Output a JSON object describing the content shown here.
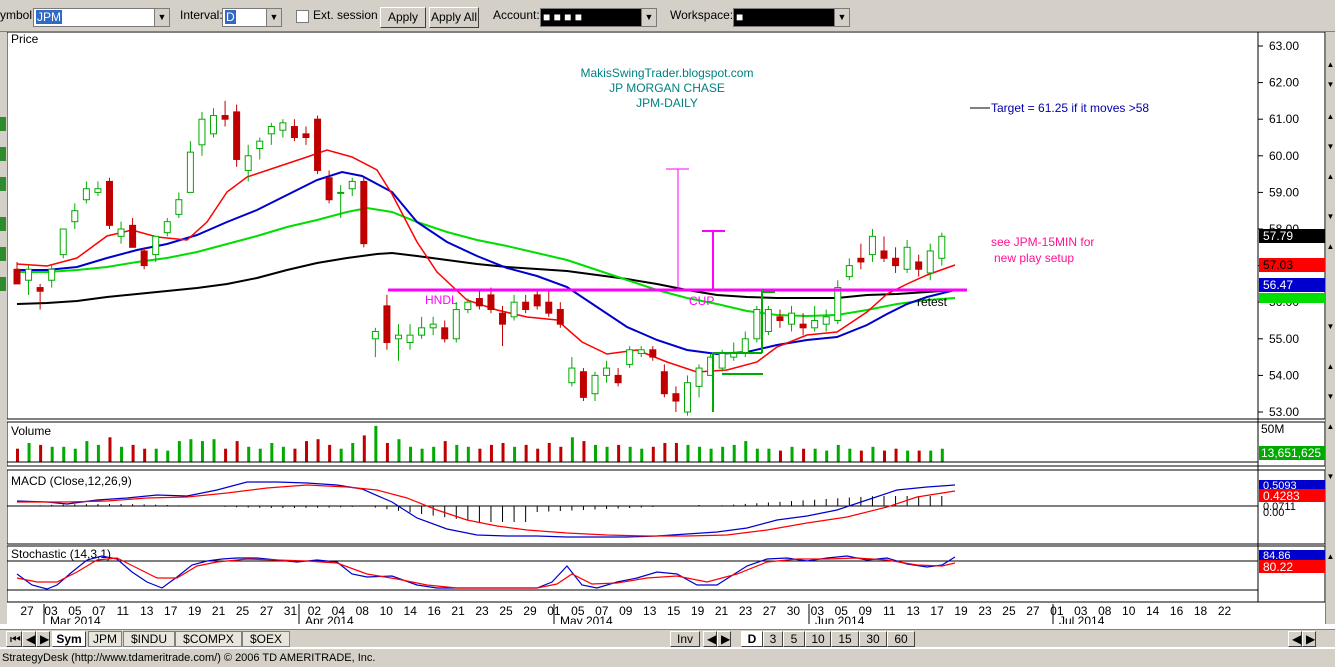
{
  "toolbar": {
    "symbol_label": "ymbol:",
    "symbol_value": "JPM",
    "interval_label": "Interval:",
    "interval_value": "D",
    "ext_session_label": "Ext. session",
    "apply_label": "Apply",
    "apply_all_label": "Apply All",
    "account_label": "Account:",
    "account_value": "■ ■ ■ ■",
    "workspace_label": "Workspace:",
    "workspace_value": "■"
  },
  "annotations": {
    "site": "MakisSwingTrader.blogspot.com",
    "company": "JP MORGAN CHASE",
    "ticker_period": "JPM-DAILY",
    "target": "Target = 61.25 if it moves >58",
    "note_line1": "see JPM-15MIN for",
    "note_line2": "new play setup",
    "hndl": "HNDL",
    "cup": "CUP",
    "retest": "retest"
  },
  "colors": {
    "up": "#00aa00",
    "down": "#c00000",
    "ema_fast": "#ff0000",
    "ema_mid": "#0000cc",
    "ema_slow": "#00dd00",
    "sma_long": "#000000",
    "pattern": "#ff00ff",
    "cup_box": "#00aa00"
  },
  "panels": {
    "price": "Price",
    "volume": "Volume",
    "macd": "MACD (Close,12,26,9)",
    "stoch": "Stochastic (14,3,1)"
  },
  "price_axis": [
    "63.00",
    "62.00",
    "61.00",
    "60.00",
    "59.00",
    "58.00",
    "57.00",
    "56.00",
    "55.00",
    "54.00",
    "53.00"
  ],
  "price_tags": {
    "last": "57.79",
    "ema_fast": "57.03",
    "ema_mid": "56.47",
    "ema_slow_partial": "56.00"
  },
  "volume_axis": "50M",
  "volume_value": "13,651,625",
  "macd_values": [
    "0.5093",
    "0.4283",
    "0.0711",
    "0.00"
  ],
  "stoch_values": [
    "84.86",
    "80.22"
  ],
  "date_ticks": [
    "27",
    "03",
    "05",
    "07",
    "11",
    "13",
    "17",
    "19",
    "21",
    "25",
    "27",
    "31",
    "02",
    "04",
    "08",
    "10",
    "14",
    "16",
    "21",
    "23",
    "25",
    "29",
    "01",
    "05",
    "07",
    "09",
    "13",
    "15",
    "19",
    "21",
    "23",
    "27",
    "30",
    "03",
    "05",
    "09",
    "11",
    "13",
    "17",
    "19",
    "23",
    "25",
    "27",
    "01",
    "03",
    "08",
    "10",
    "14",
    "16",
    "18",
    "22"
  ],
  "month_labels": [
    "Mar 2014",
    "Apr 2014",
    "May 2014",
    "Jun 2014",
    "Jul 2014"
  ],
  "chart_data": {
    "type": "candlestick",
    "title": "",
    "series_candles": [
      {
        "d": "Feb 27",
        "o": 56.9,
        "h": 57.1,
        "l": 56.5,
        "c": 56.5
      },
      {
        "d": "Feb 28",
        "o": 56.6,
        "h": 57.0,
        "l": 56.2,
        "c": 56.9
      },
      {
        "d": "Mar 03",
        "o": 56.4,
        "h": 56.5,
        "l": 55.8,
        "c": 56.3
      },
      {
        "d": "Mar 04",
        "o": 56.6,
        "h": 57.0,
        "l": 56.4,
        "c": 56.9
      },
      {
        "d": "Mar 05",
        "o": 57.3,
        "h": 57.9,
        "l": 57.2,
        "c": 58.0
      },
      {
        "d": "Mar 06",
        "o": 58.2,
        "h": 58.7,
        "l": 58.0,
        "c": 58.5
      },
      {
        "d": "Mar 07",
        "o": 58.8,
        "h": 59.3,
        "l": 58.7,
        "c": 59.1
      },
      {
        "d": "Mar 10",
        "o": 59.0,
        "h": 59.3,
        "l": 58.9,
        "c": 59.1
      },
      {
        "d": "Mar 11",
        "o": 59.3,
        "h": 59.4,
        "l": 58.0,
        "c": 58.1
      },
      {
        "d": "Mar 12",
        "o": 57.8,
        "h": 58.2,
        "l": 57.6,
        "c": 58.0
      },
      {
        "d": "Mar 13",
        "o": 58.1,
        "h": 58.3,
        "l": 57.5,
        "c": 57.5
      },
      {
        "d": "Mar 14",
        "o": 57.4,
        "h": 57.5,
        "l": 56.9,
        "c": 57.0
      },
      {
        "d": "Mar 17",
        "o": 57.3,
        "h": 57.8,
        "l": 57.1,
        "c": 57.8
      },
      {
        "d": "Mar 18",
        "o": 57.9,
        "h": 58.3,
        "l": 57.8,
        "c": 58.2
      },
      {
        "d": "Mar 19",
        "o": 58.4,
        "h": 59.0,
        "l": 58.3,
        "c": 58.8
      },
      {
        "d": "Mar 20",
        "o": 59.0,
        "h": 60.4,
        "l": 59.0,
        "c": 60.1
      },
      {
        "d": "Mar 21",
        "o": 60.3,
        "h": 61.2,
        "l": 60.0,
        "c": 61.0
      },
      {
        "d": "Mar 24",
        "o": 60.6,
        "h": 61.3,
        "l": 60.5,
        "c": 61.1
      },
      {
        "d": "Mar 25",
        "o": 61.1,
        "h": 61.5,
        "l": 60.8,
        "c": 61.0
      },
      {
        "d": "Mar 26",
        "o": 61.2,
        "h": 61.4,
        "l": 59.7,
        "c": 59.9
      },
      {
        "d": "Mar 27",
        "o": 59.6,
        "h": 60.3,
        "l": 59.3,
        "c": 60.0
      },
      {
        "d": "Mar 28",
        "o": 60.2,
        "h": 60.5,
        "l": 59.9,
        "c": 60.4
      },
      {
        "d": "Mar 31",
        "o": 60.6,
        "h": 60.9,
        "l": 60.3,
        "c": 60.8
      },
      {
        "d": "Apr 01",
        "o": 60.7,
        "h": 61.0,
        "l": 60.5,
        "c": 60.9
      },
      {
        "d": "Apr 02",
        "o": 60.8,
        "h": 61.0,
        "l": 60.4,
        "c": 60.5
      },
      {
        "d": "Apr 03",
        "o": 60.6,
        "h": 60.8,
        "l": 60.3,
        "c": 60.5
      },
      {
        "d": "Apr 04",
        "o": 61.0,
        "h": 61.1,
        "l": 59.5,
        "c": 59.6
      },
      {
        "d": "Apr 07",
        "o": 59.4,
        "h": 59.6,
        "l": 58.7,
        "c": 58.8
      },
      {
        "d": "Apr 08",
        "o": 59.0,
        "h": 59.2,
        "l": 58.3,
        "c": 59.0
      },
      {
        "d": "Apr 09",
        "o": 59.1,
        "h": 59.4,
        "l": 58.9,
        "c": 59.3
      },
      {
        "d": "Apr 10",
        "o": 59.3,
        "h": 59.4,
        "l": 57.5,
        "c": 57.6
      },
      {
        "d": "Apr 11",
        "o": 55.0,
        "h": 55.3,
        "l": 54.5,
        "c": 55.2
      },
      {
        "d": "Apr 14",
        "o": 55.9,
        "h": 56.2,
        "l": 54.7,
        "c": 54.9
      },
      {
        "d": "Apr 15",
        "o": 55.0,
        "h": 55.4,
        "l": 54.4,
        "c": 55.1
      },
      {
        "d": "Apr 16",
        "o": 54.9,
        "h": 55.4,
        "l": 54.7,
        "c": 55.1
      },
      {
        "d": "Apr 17",
        "o": 55.1,
        "h": 55.6,
        "l": 55.0,
        "c": 55.3
      },
      {
        "d": "Apr 21",
        "o": 55.3,
        "h": 55.6,
        "l": 55.1,
        "c": 55.4
      },
      {
        "d": "Apr 22",
        "o": 55.3,
        "h": 55.5,
        "l": 54.9,
        "c": 55.0
      },
      {
        "d": "Apr 23",
        "o": 55.0,
        "h": 56.0,
        "l": 54.9,
        "c": 55.8
      },
      {
        "d": "Apr 24",
        "o": 55.8,
        "h": 56.1,
        "l": 55.7,
        "c": 56.0
      },
      {
        "d": "Apr 25",
        "o": 56.1,
        "h": 56.3,
        "l": 55.8,
        "c": 55.9
      },
      {
        "d": "Apr 28",
        "o": 56.2,
        "h": 56.4,
        "l": 55.7,
        "c": 55.8
      },
      {
        "d": "Apr 29",
        "o": 55.7,
        "h": 55.9,
        "l": 54.8,
        "c": 55.4
      },
      {
        "d": "Apr 30",
        "o": 55.6,
        "h": 56.2,
        "l": 55.5,
        "c": 56.0
      },
      {
        "d": "May 01",
        "o": 56.0,
        "h": 56.2,
        "l": 55.7,
        "c": 55.8
      },
      {
        "d": "May 02",
        "o": 56.2,
        "h": 56.3,
        "l": 55.8,
        "c": 55.9
      },
      {
        "d": "May 05",
        "o": 56.0,
        "h": 56.3,
        "l": 55.6,
        "c": 55.7
      },
      {
        "d": "May 06",
        "o": 55.8,
        "h": 56.0,
        "l": 55.3,
        "c": 55.4
      },
      {
        "d": "May 07",
        "o": 53.8,
        "h": 54.5,
        "l": 53.7,
        "c": 54.2
      },
      {
        "d": "May 08",
        "o": 54.1,
        "h": 54.2,
        "l": 53.3,
        "c": 53.4
      },
      {
        "d": "May 09",
        "o": 53.5,
        "h": 54.1,
        "l": 53.3,
        "c": 54.0
      },
      {
        "d": "May 12",
        "o": 54.0,
        "h": 54.4,
        "l": 53.8,
        "c": 54.2
      },
      {
        "d": "May 13",
        "o": 54.0,
        "h": 54.2,
        "l": 53.7,
        "c": 53.8
      },
      {
        "d": "May 14",
        "o": 54.3,
        "h": 54.8,
        "l": 54.2,
        "c": 54.7
      },
      {
        "d": "May 15",
        "o": 54.6,
        "h": 54.8,
        "l": 54.5,
        "c": 54.7
      },
      {
        "d": "May 16",
        "o": 54.7,
        "h": 54.8,
        "l": 54.4,
        "c": 54.5
      },
      {
        "d": "May 19",
        "o": 54.1,
        "h": 54.3,
        "l": 53.4,
        "c": 53.5
      },
      {
        "d": "May 20",
        "o": 53.5,
        "h": 53.7,
        "l": 53.0,
        "c": 53.3
      },
      {
        "d": "May 21",
        "o": 53.0,
        "h": 54.0,
        "l": 52.9,
        "c": 53.8
      },
      {
        "d": "May 22",
        "o": 53.7,
        "h": 54.3,
        "l": 53.4,
        "c": 54.2
      },
      {
        "d": "May 23",
        "o": 54.0,
        "h": 54.6,
        "l": 54.0,
        "c": 54.5
      },
      {
        "d": "May 27",
        "o": 54.2,
        "h": 54.7,
        "l": 54.1,
        "c": 54.6
      },
      {
        "d": "May 28",
        "o": 54.5,
        "h": 54.9,
        "l": 54.4,
        "c": 54.6
      },
      {
        "d": "May 29",
        "o": 54.6,
        "h": 55.2,
        "l": 54.5,
        "c": 55.0
      },
      {
        "d": "May 30",
        "o": 55.0,
        "h": 55.9,
        "l": 54.9,
        "c": 55.8
      },
      {
        "d": "Jun 02",
        "o": 55.2,
        "h": 55.9,
        "l": 55.1,
        "c": 55.8
      },
      {
        "d": "Jun 03",
        "o": 55.6,
        "h": 55.8,
        "l": 55.3,
        "c": 55.5
      },
      {
        "d": "Jun 04",
        "o": 55.4,
        "h": 55.9,
        "l": 55.2,
        "c": 55.7
      },
      {
        "d": "Jun 05",
        "o": 55.4,
        "h": 55.7,
        "l": 55.1,
        "c": 55.3
      },
      {
        "d": "Jun 06",
        "o": 55.3,
        "h": 55.9,
        "l": 55.2,
        "c": 55.5
      },
      {
        "d": "Jun 09",
        "o": 55.4,
        "h": 55.8,
        "l": 55.2,
        "c": 55.6
      },
      {
        "d": "Jun 10",
        "o": 55.5,
        "h": 56.6,
        "l": 55.4,
        "c": 56.4
      },
      {
        "d": "Jun 11",
        "o": 56.7,
        "h": 57.2,
        "l": 56.6,
        "c": 57.0
      },
      {
        "d": "Jun 12",
        "o": 57.2,
        "h": 57.6,
        "l": 56.9,
        "c": 57.1
      },
      {
        "d": "Jun 13",
        "o": 57.3,
        "h": 58.0,
        "l": 57.1,
        "c": 57.8
      },
      {
        "d": "Jun 16",
        "o": 57.4,
        "h": 57.8,
        "l": 57.1,
        "c": 57.2
      },
      {
        "d": "Jun 17",
        "o": 57.2,
        "h": 57.5,
        "l": 56.8,
        "c": 57.0
      },
      {
        "d": "Jun 18",
        "o": 56.9,
        "h": 57.7,
        "l": 56.8,
        "c": 57.5
      },
      {
        "d": "Jun 19",
        "o": 57.1,
        "h": 57.3,
        "l": 56.7,
        "c": 56.9
      },
      {
        "d": "Jun 20",
        "o": 56.8,
        "h": 57.6,
        "l": 56.6,
        "c": 57.4
      },
      {
        "d": "Jun 23",
        "o": 57.2,
        "h": 57.9,
        "l": 57.0,
        "c": 57.8
      }
    ],
    "ylim": [
      52.8,
      63.4
    ]
  }
}
